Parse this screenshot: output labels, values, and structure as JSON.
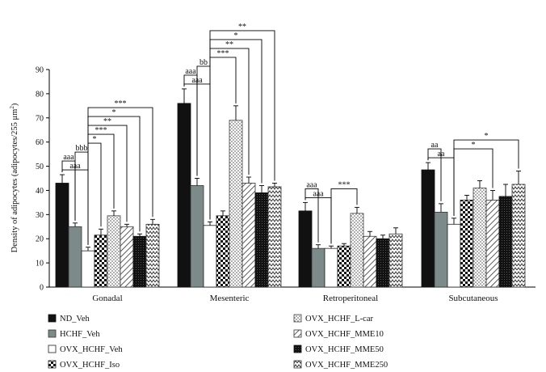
{
  "chart_data": {
    "type": "bar",
    "title": "",
    "xlabel": "",
    "ylabel_main": "Density of adipocytes (adipocytes/255 ",
    "ylabel_unit": "μm",
    "ylabel_sup": "2",
    "ylabel_end": ")",
    "ylim": [
      0,
      90
    ],
    "yticks": [
      0,
      10,
      20,
      30,
      40,
      50,
      60,
      70,
      80,
      90
    ],
    "categories": [
      "Gonadal",
      "Mesenteric",
      "Retroperitoneal",
      "Subcutaneous"
    ],
    "series": [
      {
        "name": "ND_Veh",
        "values": [
          43,
          76,
          31.5,
          48.5
        ],
        "errors": [
          3.5,
          6,
          3.5,
          3
        ]
      },
      {
        "name": "HCHF_Veh",
        "values": [
          25,
          42,
          16,
          31
        ],
        "errors": [
          1.5,
          3,
          1.5,
          3.5
        ]
      },
      {
        "name": "OVX_HCHF_Veh",
        "values": [
          15,
          25.5,
          16,
          26
        ],
        "errors": [
          1.5,
          1.5,
          1,
          2.5
        ]
      },
      {
        "name": "OVX_HCHF_Iso",
        "values": [
          21.5,
          29.5,
          17,
          36
        ],
        "errors": [
          2.5,
          2,
          1,
          2
        ]
      },
      {
        "name": "OVX_HCHF_L-car",
        "values": [
          29.5,
          69,
          30.5,
          41
        ],
        "errors": [
          2,
          6,
          2.5,
          3
        ]
      },
      {
        "name": "OVX_HCHF_MME10",
        "values": [
          25,
          43,
          21,
          36
        ],
        "errors": [
          1,
          2.5,
          2,
          4
        ]
      },
      {
        "name": "OVX_HCHF_MME50",
        "values": [
          21,
          39,
          20,
          37.5
        ],
        "errors": [
          1,
          3,
          1.5,
          5
        ]
      },
      {
        "name": "OVX_HCHF_MME250",
        "values": [
          26,
          41.5,
          22,
          42.5
        ],
        "errors": [
          2,
          1.5,
          2.5,
          5.5
        ]
      }
    ],
    "legend": {
      "position": "bottom",
      "columns": 2
    },
    "annotations": [
      {
        "group": 0,
        "from": 0,
        "to": 2,
        "label": "aaa"
      },
      {
        "group": 0,
        "from": 0,
        "to": 1,
        "label": "aaa"
      },
      {
        "group": 0,
        "from": 1,
        "to": 2,
        "label": "bbb"
      },
      {
        "group": 0,
        "from": 2,
        "to": 3,
        "label": "*"
      },
      {
        "group": 0,
        "from": 2,
        "to": 4,
        "label": "***"
      },
      {
        "group": 0,
        "from": 2,
        "to": 5,
        "label": "**"
      },
      {
        "group": 0,
        "from": 2,
        "to": 6,
        "label": "*"
      },
      {
        "group": 0,
        "from": 2,
        "to": 7,
        "label": "***"
      },
      {
        "group": 1,
        "from": 0,
        "to": 2,
        "label": "aaa"
      },
      {
        "group": 1,
        "from": 0,
        "to": 1,
        "label": "aaa"
      },
      {
        "group": 1,
        "from": 1,
        "to": 2,
        "label": "bb"
      },
      {
        "group": 1,
        "from": 2,
        "to": 4,
        "label": "***"
      },
      {
        "group": 1,
        "from": 2,
        "to": 5,
        "label": "**"
      },
      {
        "group": 1,
        "from": 2,
        "to": 6,
        "label": "*"
      },
      {
        "group": 1,
        "from": 2,
        "to": 7,
        "label": "**"
      },
      {
        "group": 2,
        "from": 0,
        "to": 2,
        "label": "aaa"
      },
      {
        "group": 2,
        "from": 0,
        "to": 1,
        "label": "aaa"
      },
      {
        "group": 2,
        "from": 2,
        "to": 4,
        "label": "***"
      },
      {
        "group": 3,
        "from": 0,
        "to": 2,
        "label": "aa"
      },
      {
        "group": 3,
        "from": 0,
        "to": 1,
        "label": "aa"
      },
      {
        "group": 3,
        "from": 2,
        "to": 5,
        "label": "*"
      },
      {
        "group": 3,
        "from": 2,
        "to": 7,
        "label": "*"
      }
    ]
  }
}
